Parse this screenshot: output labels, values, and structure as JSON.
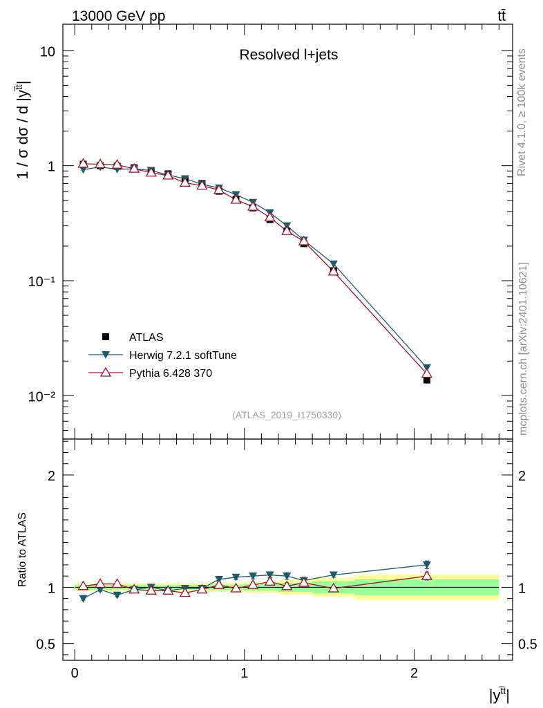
{
  "header": {
    "left": "13000 GeV pp",
    "right": "tt̄"
  },
  "side_labels": {
    "rivet": "Rivet 4.1.0, ≥ 100k events",
    "mcplots": "mcplots.cern.ch [arXiv:2401.10621]"
  },
  "colors": {
    "atlas": "#000000",
    "herwig": "#1f5a6b",
    "pythia": "#a0102a",
    "band_inner": "#99ff99",
    "band_outer": "#ffff99"
  },
  "chart_data": [
    {
      "type": "line",
      "title": "Resolved l+jets",
      "watermark": "(ATLAS_2019_I1750330)",
      "ylabel": "1 / σ dσ / d |y",
      "ylabel_sup": "t̅t",
      "yscale": "log",
      "xlim": [
        -0.07,
        2.58
      ],
      "ylim": [
        0.0042,
        17
      ],
      "yticks": [
        {
          "value": 10,
          "label": "10"
        },
        {
          "value": 1,
          "label": "1"
        },
        {
          "value": 0.1,
          "label": "10⁻¹"
        },
        {
          "value": 0.01,
          "label": "10⁻²"
        }
      ],
      "x": [
        0.05,
        0.15,
        0.25,
        0.35,
        0.45,
        0.55,
        0.65,
        0.75,
        0.85,
        0.95,
        1.05,
        1.15,
        1.25,
        1.35,
        1.525,
        2.075
      ],
      "series": [
        {
          "name": "ATLAS",
          "marker": "square",
          "values": [
            1.03,
            1.0,
            0.99,
            0.96,
            0.91,
            0.85,
            0.77,
            0.7,
            0.6,
            0.51,
            0.43,
            0.34,
            0.27,
            0.21,
            0.122,
            0.0137
          ]
        },
        {
          "name": "Herwig 7.2.1 softTune",
          "marker": "triangle-down",
          "values": [
            0.925,
            0.975,
            0.93,
            0.94,
            0.91,
            0.83,
            0.77,
            0.69,
            0.64,
            0.56,
            0.48,
            0.39,
            0.3,
            0.225,
            0.14,
            0.0175
          ]
        },
        {
          "name": "Pythia 6.428 370",
          "marker": "triangle-up-open",
          "values": [
            1.04,
            1.03,
            1.02,
            0.94,
            0.87,
            0.82,
            0.71,
            0.67,
            0.615,
            0.505,
            0.44,
            0.355,
            0.27,
            0.22,
            0.12,
            0.0155
          ]
        }
      ]
    },
    {
      "type": "line",
      "ylabel": "Ratio to ATLAS",
      "xlabel": "|y",
      "xlabel_sup": "t̅t",
      "xlim": [
        -0.07,
        2.58
      ],
      "ylim": [
        0.35,
        2.32
      ],
      "yticks": [
        {
          "value": 0.5,
          "label": "0.5"
        },
        {
          "value": 1,
          "label": "1"
        },
        {
          "value": 2,
          "label": "2"
        }
      ],
      "xticks": [
        {
          "value": 0,
          "label": "0"
        },
        {
          "value": 1,
          "label": "1"
        },
        {
          "value": 2,
          "label": "2"
        }
      ],
      "bins": [
        {
          "lo": 0.0,
          "hi": 0.1,
          "inner": 0.02,
          "outer": 0.035
        },
        {
          "lo": 0.1,
          "hi": 0.2,
          "inner": 0.02,
          "outer": 0.035
        },
        {
          "lo": 0.2,
          "hi": 0.3,
          "inner": 0.02,
          "outer": 0.035
        },
        {
          "lo": 0.3,
          "hi": 0.4,
          "inner": 0.02,
          "outer": 0.035
        },
        {
          "lo": 0.4,
          "hi": 0.5,
          "inner": 0.02,
          "outer": 0.035
        },
        {
          "lo": 0.5,
          "hi": 0.6,
          "inner": 0.02,
          "outer": 0.035
        },
        {
          "lo": 0.6,
          "hi": 0.7,
          "inner": 0.02,
          "outer": 0.035
        },
        {
          "lo": 0.7,
          "hi": 0.8,
          "inner": 0.02,
          "outer": 0.035
        },
        {
          "lo": 0.8,
          "hi": 0.9,
          "inner": 0.025,
          "outer": 0.04
        },
        {
          "lo": 0.9,
          "hi": 1.0,
          "inner": 0.025,
          "outer": 0.04
        },
        {
          "lo": 1.0,
          "hi": 1.1,
          "inner": 0.03,
          "outer": 0.05
        },
        {
          "lo": 1.1,
          "hi": 1.2,
          "inner": 0.03,
          "outer": 0.05
        },
        {
          "lo": 1.2,
          "hi": 1.3,
          "inner": 0.04,
          "outer": 0.065
        },
        {
          "lo": 1.3,
          "hi": 1.4,
          "inner": 0.04,
          "outer": 0.065
        },
        {
          "lo": 1.4,
          "hi": 1.65,
          "inner": 0.055,
          "outer": 0.085
        },
        {
          "lo": 1.65,
          "hi": 2.5,
          "inner": 0.07,
          "outer": 0.115
        }
      ],
      "x": [
        0.05,
        0.15,
        0.25,
        0.35,
        0.45,
        0.55,
        0.65,
        0.75,
        0.85,
        0.95,
        1.05,
        1.15,
        1.25,
        1.35,
        1.525,
        2.075
      ],
      "series": [
        {
          "name": "Herwig 7.2.1 softTune",
          "marker": "triangle-down",
          "values": [
            0.9,
            0.98,
            0.93,
            0.98,
            1.0,
            0.97,
            0.99,
            0.99,
            1.07,
            1.09,
            1.1,
            1.11,
            1.1,
            1.06,
            1.11,
            1.2
          ],
          "errors": [
            0.015,
            0.015,
            0.015,
            0.015,
            0.015,
            0.015,
            0.015,
            0.015,
            0.02,
            0.02,
            0.025,
            0.025,
            0.03,
            0.03,
            0.02,
            0.035
          ]
        },
        {
          "name": "Pythia 6.428 370",
          "marker": "triangle-up-open",
          "values": [
            1.01,
            1.03,
            1.03,
            0.98,
            0.97,
            0.97,
            0.95,
            0.98,
            1.02,
            0.99,
            1.02,
            1.05,
            1.01,
            1.04,
            0.99,
            1.1
          ],
          "errors": [
            0.015,
            0.015,
            0.015,
            0.015,
            0.015,
            0.015,
            0.015,
            0.015,
            0.02,
            0.02,
            0.025,
            0.025,
            0.03,
            0.03,
            0.02,
            0.035
          ]
        }
      ]
    }
  ]
}
